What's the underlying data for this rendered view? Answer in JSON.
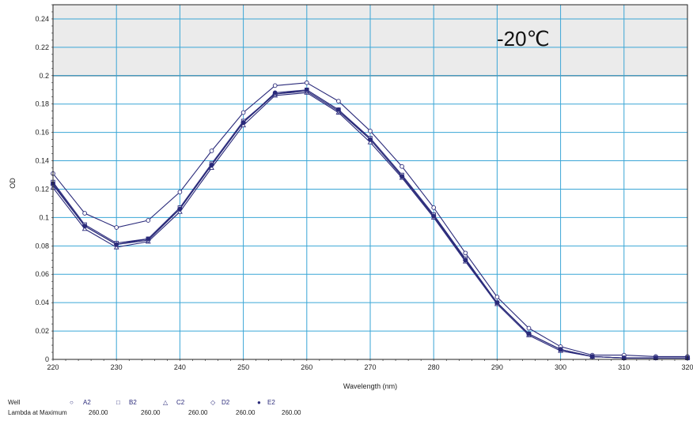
{
  "chart_data": {
    "type": "line",
    "title": "",
    "annotation": "-20℃",
    "xlabel": "Wavelength (nm)",
    "ylabel": "OD",
    "xlim": [
      220,
      320
    ],
    "ylim": [
      0,
      0.25
    ],
    "x_ticks": [
      220,
      230,
      240,
      250,
      260,
      270,
      280,
      290,
      300,
      310,
      320
    ],
    "y_ticks": [
      0,
      0.02,
      0.04,
      0.06,
      0.08,
      0.1,
      0.12,
      0.14,
      0.16,
      0.18,
      0.2,
      0.22,
      0.24
    ],
    "grid": true,
    "shaded_band": [
      0.2,
      0.25
    ],
    "x": [
      220,
      225,
      230,
      235,
      240,
      245,
      250,
      255,
      260,
      265,
      270,
      275,
      280,
      285,
      290,
      295,
      300,
      305,
      310,
      315,
      320
    ],
    "series": [
      {
        "name": "A2",
        "marker": "circle",
        "values": [
          0.131,
          0.103,
          0.093,
          0.098,
          0.118,
          0.147,
          0.174,
          0.193,
          0.195,
          0.182,
          0.161,
          0.136,
          0.107,
          0.075,
          0.044,
          0.022,
          0.009,
          0.003,
          0.003,
          0.002,
          0.002
        ]
      },
      {
        "name": "B2",
        "marker": "square",
        "values": [
          0.125,
          0.095,
          0.082,
          0.085,
          0.107,
          0.138,
          0.168,
          0.187,
          0.19,
          0.176,
          0.156,
          0.13,
          0.102,
          0.071,
          0.04,
          0.018,
          0.007,
          0.002,
          0.001,
          0.001,
          0.001
        ]
      },
      {
        "name": "C2",
        "marker": "triangle",
        "values": [
          0.121,
          0.092,
          0.079,
          0.083,
          0.104,
          0.135,
          0.165,
          0.186,
          0.188,
          0.174,
          0.153,
          0.128,
          0.1,
          0.069,
          0.039,
          0.017,
          0.006,
          0.002,
          0.001,
          0.001,
          0.001
        ]
      },
      {
        "name": "D2",
        "marker": "diamond",
        "values": [
          0.123,
          0.094,
          0.081,
          0.084,
          0.106,
          0.137,
          0.167,
          0.187,
          0.189,
          0.175,
          0.155,
          0.129,
          0.101,
          0.07,
          0.04,
          0.018,
          0.007,
          0.002,
          0.001,
          0.001,
          0.001
        ]
      },
      {
        "name": "E2",
        "marker": "filled-circle",
        "values": [
          0.124,
          0.094,
          0.081,
          0.085,
          0.106,
          0.137,
          0.167,
          0.188,
          0.19,
          0.176,
          0.155,
          0.129,
          0.101,
          0.07,
          0.04,
          0.018,
          0.007,
          0.002,
          0.001,
          0.001,
          0.001
        ]
      }
    ],
    "colors": {
      "series": "#2a2a7a",
      "grid": "#3aa6d6",
      "band": "#ebebeb",
      "axis": "#222222"
    }
  },
  "legend": {
    "well_label": "Well",
    "lambda_label": "Lambda at Maximum",
    "symbols": [
      "○",
      "□",
      "△",
      "◇",
      "●"
    ],
    "wells": [
      "A2",
      "B2",
      "C2",
      "D2",
      "E2"
    ],
    "lambda_values": [
      "260.00",
      "260.00",
      "260.00",
      "260.00",
      "260.00"
    ]
  }
}
